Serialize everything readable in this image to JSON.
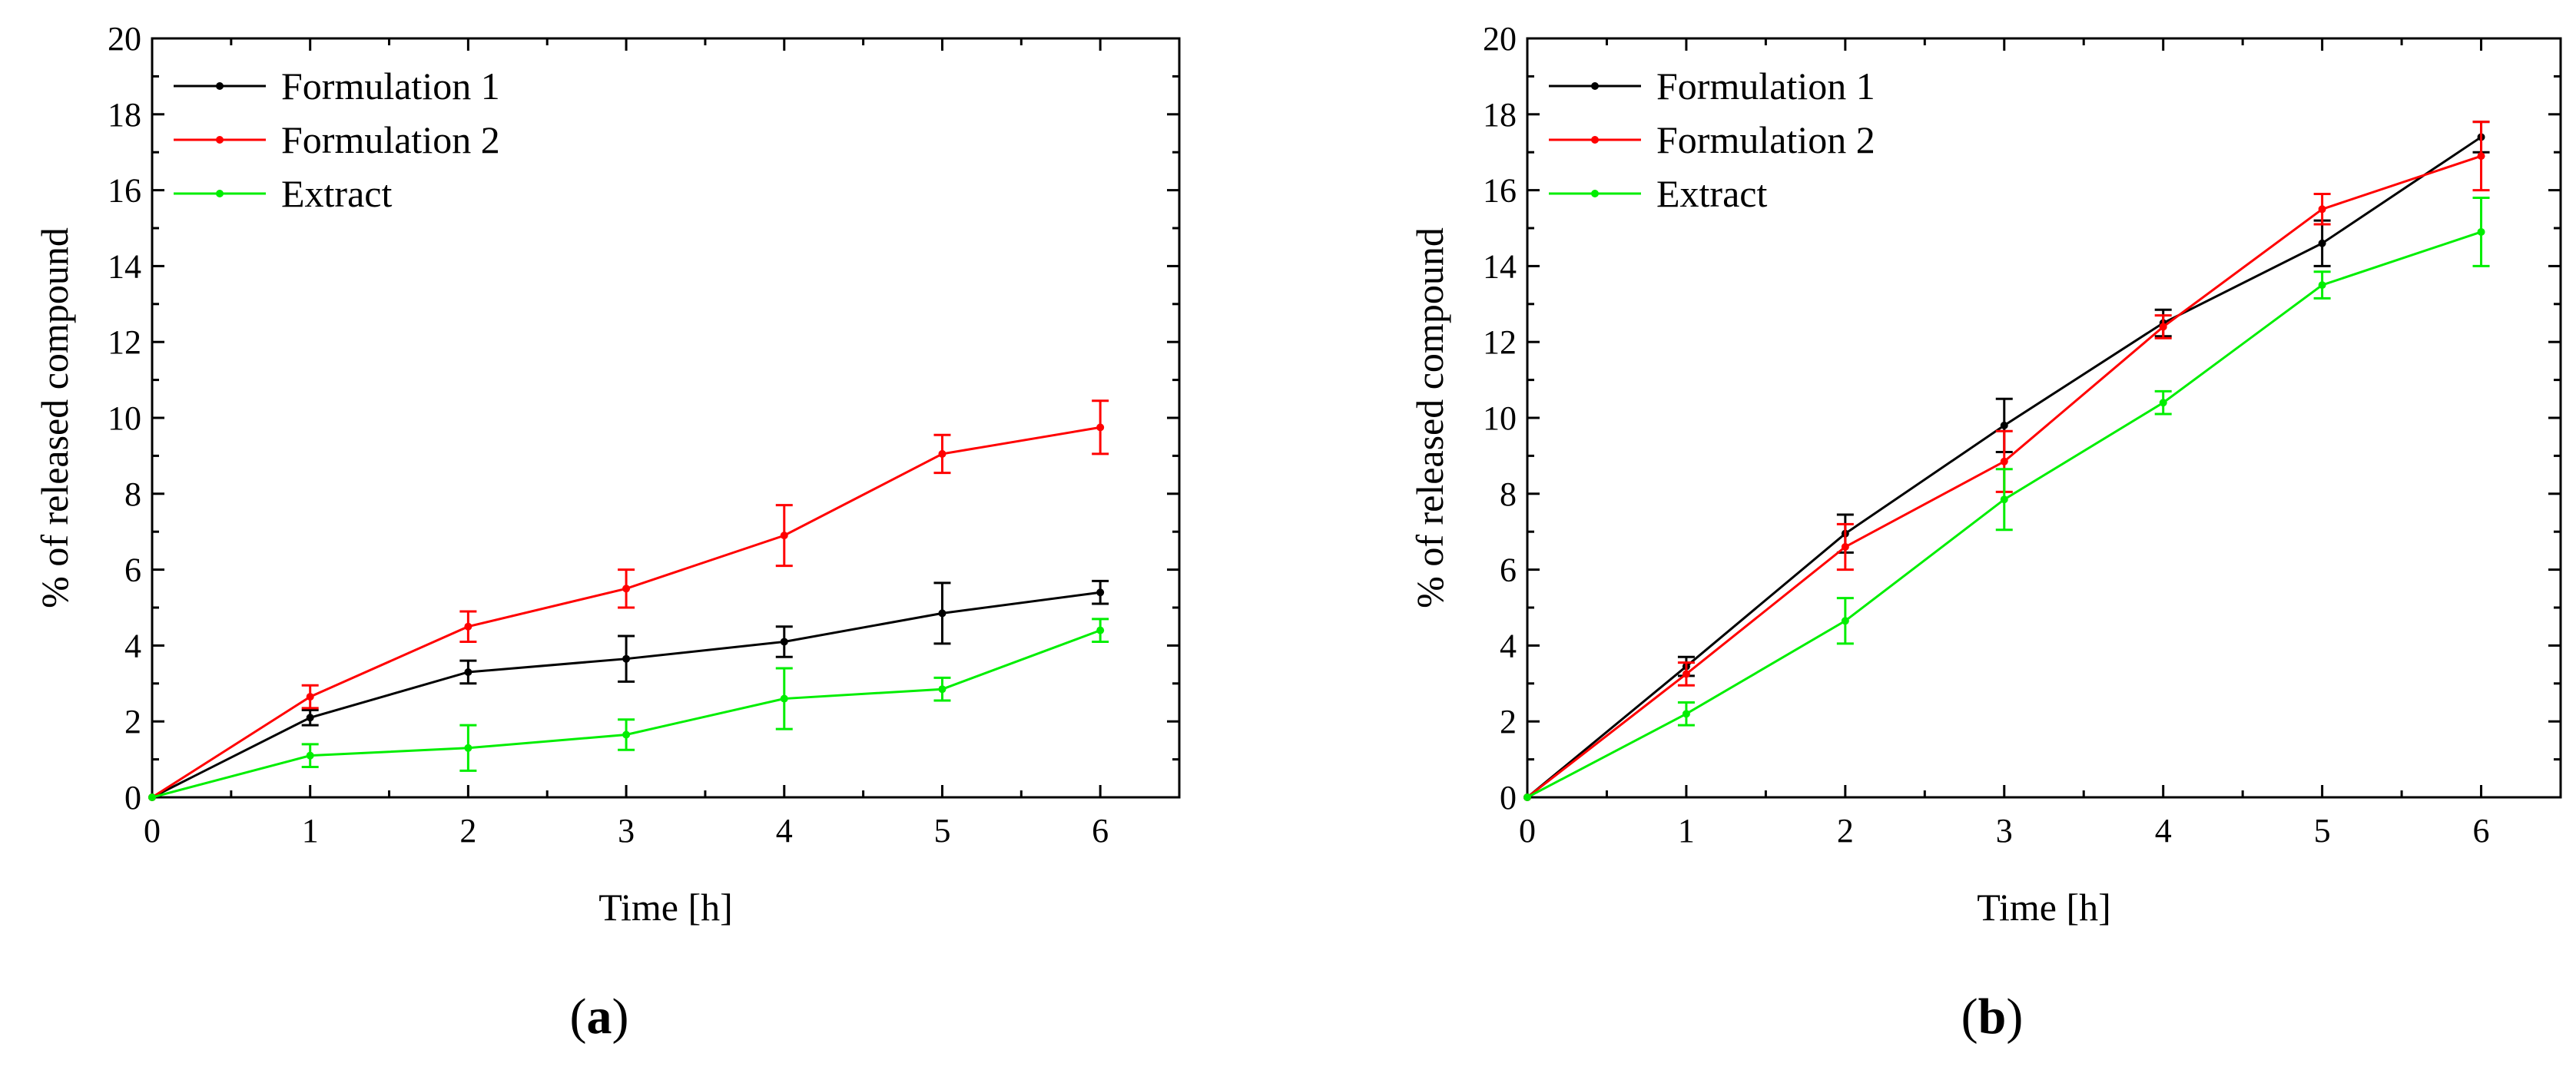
{
  "colors": {
    "formulation1": "#000000",
    "formulation2": "#ff0000",
    "extract": "#00ee00"
  },
  "chart_data": [
    {
      "type": "line",
      "panel_label": "a",
      "xlabel": "Time [h]",
      "ylabel": "% of released compound",
      "xlim": [
        0,
        6.5
      ],
      "ylim": [
        0,
        20
      ],
      "xticks": [
        "0",
        "1",
        "2",
        "3",
        "4",
        "5",
        "6"
      ],
      "yticks": [
        "0",
        "2",
        "4",
        "6",
        "8",
        "10",
        "12",
        "14",
        "16",
        "18",
        "20"
      ],
      "legend_position": "top-left",
      "x": [
        0,
        1,
        2,
        3,
        4,
        5,
        6
      ],
      "series": [
        {
          "name": "Formulation 1",
          "color_key": "formulation1",
          "values": [
            0,
            2.1,
            3.3,
            3.65,
            4.1,
            4.85,
            5.4
          ],
          "errors": [
            0,
            0.2,
            0.3,
            0.6,
            0.4,
            0.8,
            0.3
          ]
        },
        {
          "name": "Formulation 2",
          "color_key": "formulation2",
          "values": [
            0,
            2.65,
            4.5,
            5.5,
            6.9,
            9.05,
            9.75
          ],
          "errors": [
            0,
            0.3,
            0.4,
            0.5,
            0.8,
            0.5,
            0.7
          ]
        },
        {
          "name": "Extract",
          "color_key": "extract",
          "values": [
            0,
            1.1,
            1.3,
            1.65,
            2.6,
            2.85,
            4.4
          ],
          "errors": [
            0,
            0.3,
            0.6,
            0.4,
            0.8,
            0.3,
            0.3
          ]
        }
      ]
    },
    {
      "type": "line",
      "panel_label": "b",
      "xlabel": "Time [h]",
      "ylabel": "% of released compound",
      "xlim": [
        0,
        6.5
      ],
      "ylim": [
        0,
        20
      ],
      "xticks": [
        "0",
        "1",
        "2",
        "3",
        "4",
        "5",
        "6"
      ],
      "yticks": [
        "0",
        "2",
        "4",
        "6",
        "8",
        "10",
        "12",
        "14",
        "16",
        "18",
        "20"
      ],
      "legend_position": "top-left",
      "x": [
        0,
        1,
        2,
        3,
        4,
        5,
        6
      ],
      "series": [
        {
          "name": "Formulation 1",
          "color_key": "formulation1",
          "values": [
            0,
            3.45,
            6.95,
            9.8,
            12.5,
            14.6,
            17.4
          ],
          "errors": [
            0,
            0.25,
            0.5,
            0.7,
            0.35,
            0.6,
            0.4
          ]
        },
        {
          "name": "Formulation 2",
          "color_key": "formulation2",
          "values": [
            0,
            3.25,
            6.6,
            8.85,
            12.4,
            15.5,
            16.9
          ],
          "errors": [
            0,
            0.3,
            0.6,
            0.8,
            0.3,
            0.4,
            0.9
          ]
        },
        {
          "name": "Extract",
          "color_key": "extract",
          "values": [
            0,
            2.2,
            4.65,
            7.85,
            10.4,
            13.5,
            14.9
          ],
          "errors": [
            0,
            0.3,
            0.6,
            0.8,
            0.3,
            0.35,
            0.9
          ]
        }
      ]
    }
  ]
}
